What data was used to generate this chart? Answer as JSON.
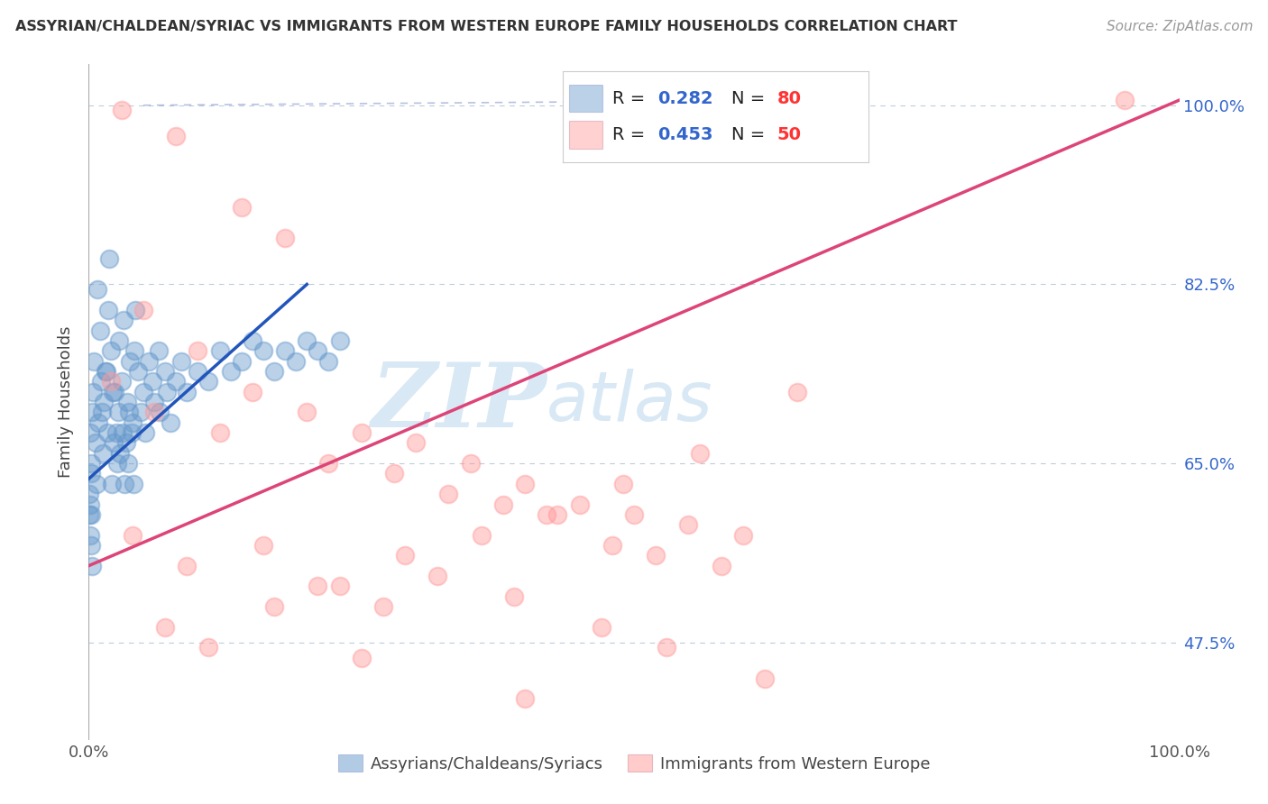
{
  "title": "ASSYRIAN/CHALDEAN/SYRIAC VS IMMIGRANTS FROM WESTERN EUROPE FAMILY HOUSEHOLDS CORRELATION CHART",
  "source_text": "Source: ZipAtlas.com",
  "ylabel": "Family Households",
  "y_ticks": [
    47.5,
    65.0,
    82.5,
    100.0
  ],
  "y_tick_labels": [
    "47.5%",
    "65.0%",
    "82.5%",
    "100.0%"
  ],
  "x_range": [
    0.0,
    100.0
  ],
  "y_range": [
    38.0,
    104.0
  ],
  "blue_R": 0.282,
  "blue_N": 80,
  "pink_R": 0.453,
  "pink_N": 50,
  "blue_color": "#6699CC",
  "pink_color": "#FF9999",
  "blue_label": "Assyrians/Chaldeans/Syriacs",
  "pink_label": "Immigrants from Western Europe",
  "watermark_zip": "ZIP",
  "watermark_atlas": "atlas",
  "watermark_color": "#D8E8F4",
  "background_color": "#FFFFFF",
  "legend_R_color": "#3366CC",
  "legend_N_color": "#FF3333",
  "blue_scatter": [
    [
      0.5,
      75.0
    ],
    [
      0.8,
      82.0
    ],
    [
      1.0,
      78.0
    ],
    [
      1.2,
      70.0
    ],
    [
      1.5,
      74.0
    ],
    [
      1.8,
      80.0
    ],
    [
      2.0,
      76.0
    ],
    [
      2.2,
      72.0
    ],
    [
      2.5,
      68.0
    ],
    [
      2.8,
      77.0
    ],
    [
      3.0,
      73.0
    ],
    [
      3.2,
      79.0
    ],
    [
      3.5,
      71.0
    ],
    [
      3.8,
      75.0
    ],
    [
      4.0,
      69.0
    ],
    [
      4.2,
      76.0
    ],
    [
      4.5,
      74.0
    ],
    [
      4.8,
      70.0
    ],
    [
      5.0,
      72.0
    ],
    [
      5.2,
      68.0
    ],
    [
      5.5,
      75.0
    ],
    [
      5.8,
      73.0
    ],
    [
      6.0,
      71.0
    ],
    [
      6.4,
      76.0
    ],
    [
      6.5,
      70.0
    ],
    [
      7.0,
      74.0
    ],
    [
      7.2,
      72.0
    ],
    [
      7.5,
      69.0
    ],
    [
      8.0,
      73.0
    ],
    [
      8.5,
      75.0
    ],
    [
      9.0,
      72.0
    ],
    [
      10.0,
      74.0
    ],
    [
      11.0,
      73.0
    ],
    [
      12.0,
      76.0
    ],
    [
      13.0,
      74.0
    ],
    [
      14.0,
      75.0
    ],
    [
      15.0,
      77.0
    ],
    [
      16.0,
      76.0
    ],
    [
      17.0,
      74.0
    ],
    [
      18.0,
      76.0
    ],
    [
      19.0,
      75.0
    ],
    [
      20.0,
      77.0
    ],
    [
      21.0,
      76.0
    ],
    [
      22.0,
      75.0
    ],
    [
      23.0,
      77.0
    ],
    [
      0.1,
      68.0
    ],
    [
      0.2,
      65.0
    ],
    [
      0.3,
      70.0
    ],
    [
      0.4,
      72.0
    ],
    [
      0.6,
      67.0
    ],
    [
      0.7,
      63.0
    ],
    [
      0.9,
      69.0
    ],
    [
      1.1,
      73.0
    ],
    [
      1.3,
      66.0
    ],
    [
      1.4,
      71.0
    ],
    [
      1.6,
      74.0
    ],
    [
      1.7,
      68.0
    ],
    [
      2.1,
      63.0
    ],
    [
      2.3,
      67.0
    ],
    [
      2.4,
      72.0
    ],
    [
      2.6,
      65.0
    ],
    [
      2.7,
      70.0
    ],
    [
      2.9,
      66.0
    ],
    [
      3.1,
      68.0
    ],
    [
      3.3,
      63.0
    ],
    [
      3.4,
      67.0
    ],
    [
      3.6,
      65.0
    ],
    [
      3.7,
      70.0
    ],
    [
      3.9,
      68.0
    ],
    [
      4.1,
      63.0
    ],
    [
      0.05,
      60.0
    ],
    [
      0.08,
      62.0
    ],
    [
      0.12,
      58.0
    ],
    [
      0.15,
      61.0
    ],
    [
      0.18,
      64.0
    ],
    [
      0.22,
      57.0
    ],
    [
      0.25,
      60.0
    ],
    [
      0.3,
      55.0
    ],
    [
      1.9,
      85.0
    ],
    [
      4.3,
      80.0
    ]
  ],
  "pink_scatter": [
    [
      3.0,
      99.5
    ],
    [
      8.0,
      97.0
    ],
    [
      14.0,
      90.0
    ],
    [
      18.0,
      87.0
    ],
    [
      5.0,
      80.0
    ],
    [
      10.0,
      76.0
    ],
    [
      15.0,
      72.0
    ],
    [
      20.0,
      70.0
    ],
    [
      25.0,
      68.0
    ],
    [
      30.0,
      67.0
    ],
    [
      35.0,
      65.0
    ],
    [
      40.0,
      63.0
    ],
    [
      45.0,
      61.0
    ],
    [
      50.0,
      60.0
    ],
    [
      55.0,
      59.0
    ],
    [
      60.0,
      58.0
    ],
    [
      2.0,
      73.0
    ],
    [
      6.0,
      70.0
    ],
    [
      12.0,
      68.0
    ],
    [
      22.0,
      65.0
    ],
    [
      28.0,
      64.0
    ],
    [
      33.0,
      62.0
    ],
    [
      38.0,
      61.0
    ],
    [
      42.0,
      60.0
    ],
    [
      48.0,
      57.0
    ],
    [
      52.0,
      56.0
    ],
    [
      58.0,
      55.0
    ],
    [
      65.0,
      72.0
    ],
    [
      4.0,
      58.0
    ],
    [
      9.0,
      55.0
    ],
    [
      16.0,
      57.0
    ],
    [
      21.0,
      53.0
    ],
    [
      27.0,
      51.0
    ],
    [
      32.0,
      54.0
    ],
    [
      39.0,
      52.0
    ],
    [
      47.0,
      49.0
    ],
    [
      53.0,
      47.0
    ],
    [
      62.0,
      44.0
    ],
    [
      7.0,
      49.0
    ],
    [
      11.0,
      47.0
    ],
    [
      17.0,
      51.0
    ],
    [
      23.0,
      53.0
    ],
    [
      29.0,
      56.0
    ],
    [
      36.0,
      58.0
    ],
    [
      43.0,
      60.0
    ],
    [
      49.0,
      63.0
    ],
    [
      56.0,
      66.0
    ],
    [
      95.0,
      100.5
    ],
    [
      25.0,
      46.0
    ],
    [
      40.0,
      42.0
    ]
  ],
  "blue_line": [
    [
      0.0,
      63.5
    ],
    [
      20.0,
      82.5
    ]
  ],
  "pink_line": [
    [
      0.0,
      55.0
    ],
    [
      100.0,
      100.5
    ]
  ],
  "dash_line": [
    [
      5.0,
      100.0
    ],
    [
      65.0,
      100.5
    ]
  ]
}
